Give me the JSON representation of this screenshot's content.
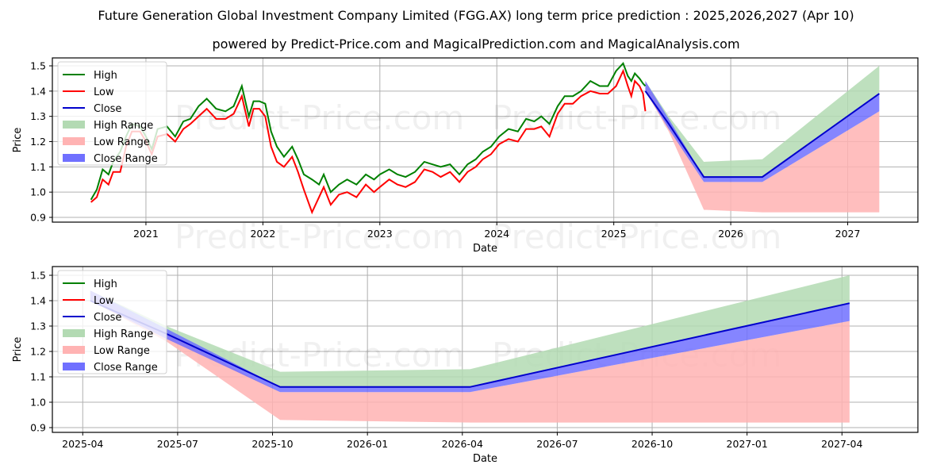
{
  "header": {
    "title": "Future Generation Global Investment Company Limited (FGG.AX) long term price prediction : 2025,2026,2027 (Apr 10)",
    "subtitle": "powered by Predict-Price.com and MagicalPrediction.com and MagicalAnalysis.com"
  },
  "watermark": "Predict-Price.com",
  "colors": {
    "high": "#008000",
    "low": "#ff0000",
    "close": "#0000cc",
    "high_range": "#b3dab3",
    "low_range": "#ffb3b3",
    "close_range": "#7070ff"
  },
  "legend": [
    "High",
    "Low",
    "Close",
    "High Range",
    "Low Range",
    "Close Range"
  ],
  "chart_data": [
    {
      "type": "line",
      "title": "",
      "xlabel": "Date",
      "ylabel": "Price",
      "ylim": [
        0.89,
        1.53
      ],
      "xlim": [
        2020.2,
        2027.6
      ],
      "yticks": [
        0.9,
        1.0,
        1.1,
        1.2,
        1.3,
        1.4,
        1.5
      ],
      "ytick_labels": [
        "0.9",
        "1.0",
        "1.1",
        "1.2",
        "1.3",
        "1.4",
        "1.5"
      ],
      "xticks": [
        2021,
        2022,
        2023,
        2024,
        2025,
        2026,
        2027
      ],
      "xtick_labels": [
        "2021",
        "2022",
        "2023",
        "2024",
        "2025",
        "2026",
        "2027"
      ],
      "grid": true,
      "legend_position": "top-left",
      "history": {
        "x": [
          2020.53,
          2020.58,
          2020.63,
          2020.68,
          2020.72,
          2020.78,
          2020.83,
          2020.88,
          2020.95,
          2021.0,
          2021.05,
          2021.1,
          2021.18,
          2021.25,
          2021.32,
          2021.38,
          2021.45,
          2021.52,
          2021.6,
          2021.68,
          2021.75,
          2021.82,
          2021.88,
          2021.92,
          2021.97,
          2022.02,
          2022.07,
          2022.12,
          2022.18,
          2022.25,
          2022.3,
          2022.35,
          2022.42,
          2022.48,
          2022.52,
          2022.58,
          2022.65,
          2022.72,
          2022.8,
          2022.88,
          2022.95,
          2023.0,
          2023.08,
          2023.15,
          2023.22,
          2023.3,
          2023.38,
          2023.45,
          2023.52,
          2023.6,
          2023.68,
          2023.75,
          2023.82,
          2023.88,
          2023.95,
          2024.02,
          2024.1,
          2024.18,
          2024.25,
          2024.32,
          2024.38,
          2024.45,
          2024.52,
          2024.58,
          2024.65,
          2024.72,
          2024.8,
          2024.88,
          2024.95,
          2025.02,
          2025.08,
          2025.12,
          2025.15,
          2025.18,
          2025.22,
          2025.25,
          2025.27
        ],
        "high": [
          0.97,
          1.01,
          1.09,
          1.07,
          1.12,
          1.16,
          1.22,
          1.27,
          1.26,
          1.22,
          1.17,
          1.25,
          1.26,
          1.22,
          1.28,
          1.29,
          1.34,
          1.37,
          1.33,
          1.32,
          1.34,
          1.42,
          1.3,
          1.36,
          1.36,
          1.35,
          1.24,
          1.18,
          1.14,
          1.18,
          1.13,
          1.07,
          1.05,
          1.03,
          1.07,
          1.0,
          1.03,
          1.05,
          1.03,
          1.07,
          1.05,
          1.07,
          1.09,
          1.07,
          1.06,
          1.08,
          1.12,
          1.11,
          1.1,
          1.11,
          1.07,
          1.11,
          1.13,
          1.16,
          1.18,
          1.22,
          1.25,
          1.24,
          1.29,
          1.28,
          1.3,
          1.27,
          1.34,
          1.38,
          1.38,
          1.4,
          1.44,
          1.42,
          1.42,
          1.48,
          1.51,
          1.46,
          1.44,
          1.47,
          1.45,
          1.43,
          1.42
        ],
        "low": [
          0.96,
          0.98,
          1.05,
          1.03,
          1.08,
          1.08,
          1.18,
          1.24,
          1.24,
          1.2,
          1.15,
          1.22,
          1.23,
          1.2,
          1.25,
          1.27,
          1.3,
          1.33,
          1.29,
          1.29,
          1.31,
          1.38,
          1.26,
          1.33,
          1.33,
          1.3,
          1.18,
          1.12,
          1.1,
          1.14,
          1.08,
          1.01,
          0.92,
          0.98,
          1.02,
          0.95,
          0.99,
          1.0,
          0.98,
          1.03,
          1.0,
          1.02,
          1.05,
          1.03,
          1.02,
          1.04,
          1.09,
          1.08,
          1.06,
          1.08,
          1.04,
          1.08,
          1.1,
          1.13,
          1.15,
          1.19,
          1.21,
          1.2,
          1.25,
          1.25,
          1.26,
          1.22,
          1.31,
          1.35,
          1.35,
          1.38,
          1.4,
          1.39,
          1.39,
          1.42,
          1.48,
          1.42,
          1.38,
          1.44,
          1.42,
          1.39,
          1.32
        ]
      },
      "forecast": {
        "x": [
          2025.27,
          2025.47,
          2025.77,
          2026.27,
          2027.27
        ],
        "close": [
          1.4,
          1.27,
          1.06,
          1.06,
          1.39
        ],
        "high_upper": [
          1.44,
          1.3,
          1.12,
          1.13,
          1.5
        ],
        "low_lower": [
          1.4,
          1.24,
          0.93,
          0.92,
          0.92
        ],
        "close_range_upper": [
          1.44,
          1.29,
          1.06,
          1.06,
          1.39
        ],
        "close_range_lower": [
          1.4,
          1.25,
          1.04,
          1.04,
          1.32
        ],
        "low_range_upper": [
          1.44,
          1.27,
          1.04,
          1.04,
          1.32
        ]
      }
    },
    {
      "type": "line",
      "title": "",
      "xlabel": "Date",
      "ylabel": "Price",
      "ylim": [
        0.89,
        1.53
      ],
      "xlim": [
        2025.17,
        2027.45
      ],
      "yticks": [
        0.9,
        1.0,
        1.1,
        1.2,
        1.3,
        1.4,
        1.5
      ],
      "ytick_labels": [
        "0.9",
        "1.0",
        "1.1",
        "1.2",
        "1.3",
        "1.4",
        "1.5"
      ],
      "xticks": [
        2025.25,
        2025.5,
        2025.75,
        2026.0,
        2026.25,
        2026.5,
        2026.75,
        2027.0,
        2027.25
      ],
      "xtick_labels": [
        "2025-04",
        "2025-07",
        "2025-10",
        "2026-01",
        "2026-04",
        "2026-07",
        "2026-10",
        "2027-01",
        "2027-04"
      ],
      "grid": true,
      "legend_position": "top-left",
      "forecast": {
        "x": [
          2025.27,
          2025.47,
          2025.77,
          2026.27,
          2027.27
        ],
        "close": [
          1.4,
          1.27,
          1.06,
          1.06,
          1.39
        ],
        "high_upper": [
          1.44,
          1.3,
          1.12,
          1.13,
          1.5
        ],
        "low_lower": [
          1.4,
          1.24,
          0.93,
          0.92,
          0.92
        ],
        "close_range_upper": [
          1.44,
          1.29,
          1.06,
          1.06,
          1.39
        ],
        "close_range_lower": [
          1.4,
          1.25,
          1.04,
          1.04,
          1.32
        ],
        "low_range_upper": [
          1.44,
          1.27,
          1.04,
          1.04,
          1.32
        ]
      }
    }
  ]
}
